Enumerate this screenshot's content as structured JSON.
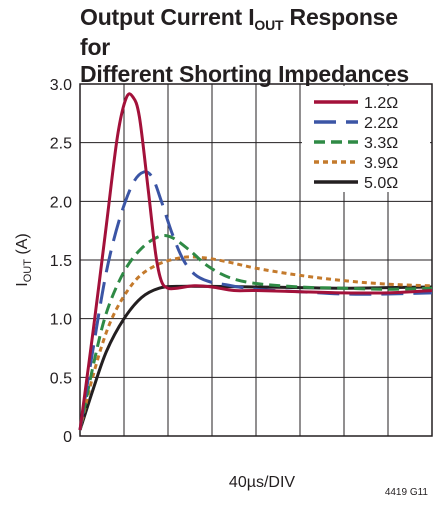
{
  "figure_id": "4419 G11",
  "chart_data": {
    "type": "line",
    "title_line1_pre": "Output Current I",
    "title_line1_sub": "OUT",
    "title_line1_post": " Response for",
    "title_line2": "Different Shorting Impedances",
    "xlabel": "40µs/DIV",
    "ylabel_pre": "I",
    "ylabel_sub": "OUT",
    "ylabel_post": " (A)",
    "xlim": [
      0,
      8
    ],
    "ylim": [
      0,
      3.0
    ],
    "x_divisions": 8,
    "y_ticks": [
      "0",
      "0.5",
      "1.0",
      "1.5",
      "2.0",
      "2.5",
      "3.0"
    ],
    "y_tick_values": [
      0,
      0.5,
      1.0,
      1.5,
      2.0,
      2.5,
      3.0
    ],
    "grid": true,
    "legend_position": "top-right",
    "series": [
      {
        "name": "1.2Ω",
        "color": "#a3113a",
        "dash": "solid",
        "points": [
          [
            0,
            0.05
          ],
          [
            0.3,
            0.9
          ],
          [
            0.6,
            1.8
          ],
          [
            0.85,
            2.55
          ],
          [
            1.05,
            2.88
          ],
          [
            1.2,
            2.89
          ],
          [
            1.35,
            2.72
          ],
          [
            1.55,
            2.1
          ],
          [
            1.72,
            1.55
          ],
          [
            1.85,
            1.32
          ],
          [
            2.0,
            1.26
          ],
          [
            2.2,
            1.26
          ],
          [
            2.6,
            1.28
          ],
          [
            3.0,
            1.27
          ],
          [
            3.5,
            1.24
          ],
          [
            4.0,
            1.24
          ],
          [
            5.0,
            1.23
          ],
          [
            6.0,
            1.22
          ],
          [
            7.0,
            1.22
          ],
          [
            8.0,
            1.24
          ]
        ]
      },
      {
        "name": "2.2Ω",
        "color": "#3b55a5",
        "dash": "long",
        "points": [
          [
            0,
            0.05
          ],
          [
            0.3,
            0.75
          ],
          [
            0.6,
            1.4
          ],
          [
            0.9,
            1.85
          ],
          [
            1.2,
            2.15
          ],
          [
            1.45,
            2.25
          ],
          [
            1.65,
            2.2
          ],
          [
            1.85,
            2.0
          ],
          [
            2.1,
            1.72
          ],
          [
            2.35,
            1.5
          ],
          [
            2.6,
            1.38
          ],
          [
            2.9,
            1.32
          ],
          [
            3.3,
            1.29
          ],
          [
            4.0,
            1.25
          ],
          [
            5.0,
            1.23
          ],
          [
            6.0,
            1.21
          ],
          [
            7.0,
            1.21
          ],
          [
            8.0,
            1.22
          ]
        ]
      },
      {
        "name": "3.3Ω",
        "color": "#2f8a45",
        "dash": "medium",
        "points": [
          [
            0,
            0.05
          ],
          [
            0.3,
            0.6
          ],
          [
            0.6,
            1.05
          ],
          [
            1.0,
            1.4
          ],
          [
            1.4,
            1.6
          ],
          [
            1.8,
            1.7
          ],
          [
            2.1,
            1.69
          ],
          [
            2.5,
            1.58
          ],
          [
            2.9,
            1.45
          ],
          [
            3.4,
            1.35
          ],
          [
            4.0,
            1.3
          ],
          [
            5.0,
            1.27
          ],
          [
            6.0,
            1.26
          ],
          [
            7.0,
            1.25
          ],
          [
            8.0,
            1.26
          ]
        ]
      },
      {
        "name": "3.9Ω",
        "color": "#c47a2c",
        "dash": "dot",
        "points": [
          [
            0,
            0.05
          ],
          [
            0.3,
            0.52
          ],
          [
            0.7,
            0.98
          ],
          [
            1.2,
            1.3
          ],
          [
            1.7,
            1.45
          ],
          [
            2.3,
            1.52
          ],
          [
            2.8,
            1.52
          ],
          [
            3.4,
            1.48
          ],
          [
            4.0,
            1.43
          ],
          [
            4.8,
            1.38
          ],
          [
            5.6,
            1.34
          ],
          [
            6.4,
            1.31
          ],
          [
            7.2,
            1.29
          ],
          [
            8.0,
            1.28
          ]
        ]
      },
      {
        "name": "5.0Ω",
        "color": "#231f20",
        "dash": "solid",
        "points": [
          [
            0,
            0.05
          ],
          [
            0.3,
            0.4
          ],
          [
            0.6,
            0.72
          ],
          [
            1.0,
            1.0
          ],
          [
            1.4,
            1.18
          ],
          [
            1.8,
            1.26
          ],
          [
            2.2,
            1.275
          ],
          [
            3.0,
            1.275
          ],
          [
            4.0,
            1.27
          ],
          [
            5.0,
            1.265
          ],
          [
            6.0,
            1.26
          ],
          [
            7.0,
            1.265
          ],
          [
            8.0,
            1.27
          ]
        ]
      }
    ]
  }
}
